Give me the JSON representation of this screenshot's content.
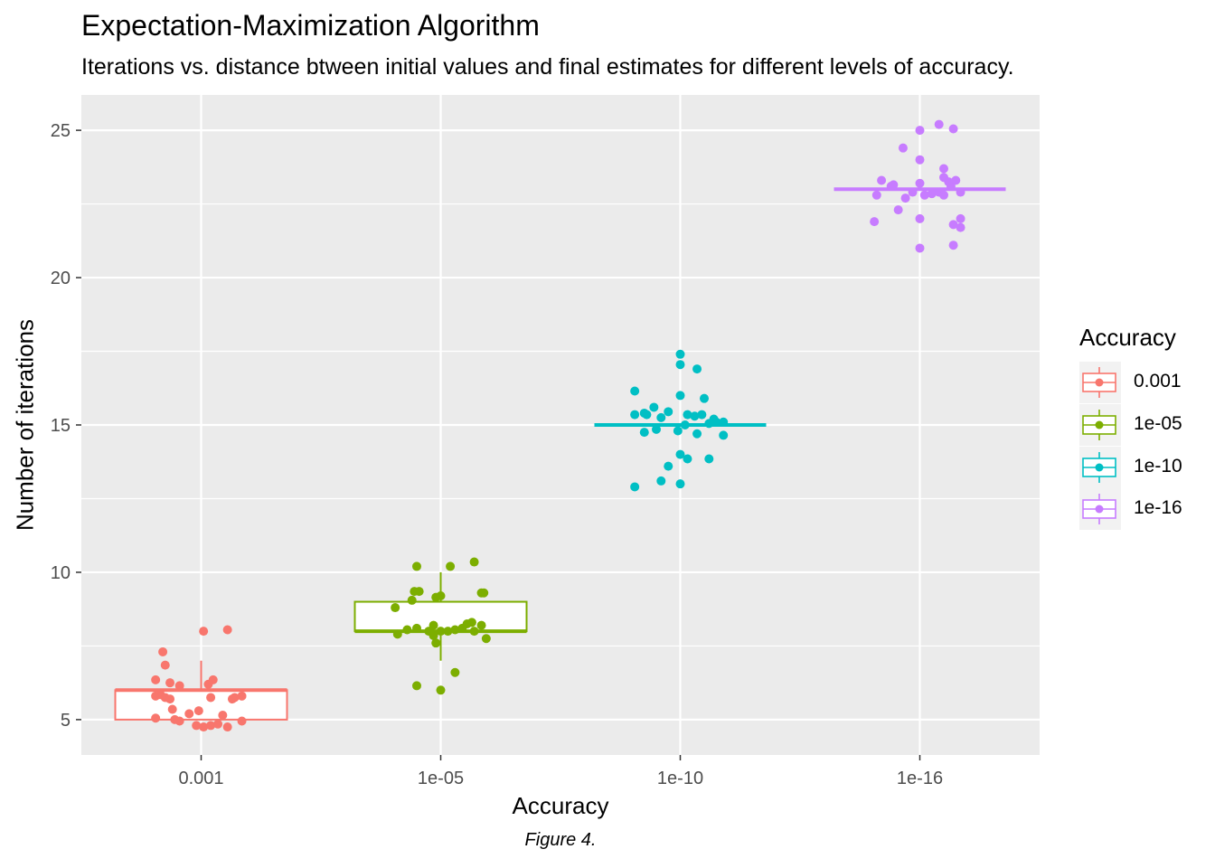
{
  "chart_data": {
    "type": "boxplot",
    "title": "Expectation-Maximization Algorithm",
    "subtitle": "Iterations vs. distance btween initial values and final estimates for different levels of accuracy.",
    "caption": "Figure 4.",
    "xlabel": "Accuracy",
    "ylabel": "Number of iterations",
    "ylim": [
      3.8,
      26.2
    ],
    "y_ticks": [
      5,
      10,
      15,
      20,
      25
    ],
    "categories": [
      "0.001",
      "1e-05",
      "1e-10",
      "1e-16"
    ],
    "legend": {
      "title": "Accuracy",
      "position": "right",
      "entries": [
        "0.001",
        "1e-05",
        "1e-10",
        "1e-16"
      ]
    },
    "colors": [
      "#F8766D",
      "#7CAE00",
      "#00BFC4",
      "#C77CFF"
    ],
    "grid": true,
    "series": [
      {
        "category": "0.001",
        "box": {
          "min": 5,
          "q1": 5,
          "median": 6,
          "q3": 6,
          "max": 7
        },
        "points": [
          [
            -0.19,
            6.35
          ],
          [
            -0.16,
            7.3
          ],
          [
            -0.15,
            6.85
          ],
          [
            -0.19,
            5.8
          ],
          [
            -0.17,
            5.85
          ],
          [
            -0.15,
            5.75
          ],
          [
            -0.13,
            5.7
          ],
          [
            -0.13,
            6.25
          ],
          [
            -0.09,
            6.15
          ],
          [
            -0.19,
            5.05
          ],
          [
            -0.11,
            5.0
          ],
          [
            -0.09,
            4.95
          ],
          [
            -0.12,
            5.35
          ],
          [
            -0.05,
            5.2
          ],
          [
            -0.01,
            5.3
          ],
          [
            -0.02,
            4.8
          ],
          [
            0.01,
            4.75
          ],
          [
            0.04,
            4.8
          ],
          [
            0.07,
            4.85
          ],
          [
            0.11,
            4.75
          ],
          [
            0.09,
            5.15
          ],
          [
            0.17,
            4.95
          ],
          [
            0.01,
            8.0
          ],
          [
            0.11,
            8.05
          ],
          [
            0.03,
            6.2
          ],
          [
            0.05,
            6.35
          ],
          [
            0.04,
            5.75
          ],
          [
            0.14,
            5.75
          ],
          [
            0.17,
            5.8
          ],
          [
            0.13,
            5.7
          ]
        ]
      },
      {
        "category": "1e-05",
        "box": {
          "min": 7,
          "q1": 8,
          "median": 8,
          "q3": 9,
          "max": 10
        },
        "points": [
          [
            -0.19,
            8.8
          ],
          [
            -0.12,
            9.05
          ],
          [
            -0.11,
            9.35
          ],
          [
            -0.09,
            9.35
          ],
          [
            -0.1,
            10.2
          ],
          [
            0.04,
            10.2
          ],
          [
            0.14,
            10.35
          ],
          [
            -0.18,
            7.9
          ],
          [
            -0.14,
            8.05
          ],
          [
            -0.1,
            8.1
          ],
          [
            -0.05,
            8.0
          ],
          [
            -0.03,
            8.2
          ],
          [
            0.0,
            8.0
          ],
          [
            0.03,
            8.0
          ],
          [
            -0.02,
            9.15
          ],
          [
            0.0,
            9.2
          ],
          [
            0.06,
            8.05
          ],
          [
            0.09,
            8.1
          ],
          [
            0.11,
            8.25
          ],
          [
            0.13,
            8.3
          ],
          [
            0.14,
            8.0
          ],
          [
            0.17,
            8.2
          ],
          [
            0.19,
            7.75
          ],
          [
            -0.03,
            7.85
          ],
          [
            -0.02,
            7.6
          ],
          [
            -0.1,
            6.15
          ],
          [
            0.06,
            6.6
          ],
          [
            0.0,
            6.0
          ],
          [
            0.17,
            9.3
          ],
          [
            0.18,
            9.3
          ]
        ]
      },
      {
        "category": "1e-10",
        "box": {
          "min": 15,
          "q1": 15,
          "median": 15,
          "q3": 15,
          "max": 15
        },
        "points": [
          [
            -0.19,
            16.15
          ],
          [
            -0.19,
            15.35
          ],
          [
            -0.15,
            15.4
          ],
          [
            -0.14,
            15.35
          ],
          [
            -0.11,
            15.6
          ],
          [
            -0.15,
            14.75
          ],
          [
            -0.1,
            14.85
          ],
          [
            -0.08,
            15.25
          ],
          [
            -0.05,
            15.45
          ],
          [
            -0.01,
            14.8
          ],
          [
            0.0,
            17.4
          ],
          [
            0.0,
            17.05
          ],
          [
            0.07,
            16.9
          ],
          [
            0.0,
            16.0
          ],
          [
            0.1,
            15.9
          ],
          [
            0.02,
            15.0
          ],
          [
            0.03,
            15.35
          ],
          [
            0.06,
            15.3
          ],
          [
            0.09,
            15.35
          ],
          [
            0.14,
            15.2
          ],
          [
            0.15,
            15.1
          ],
          [
            0.18,
            15.1
          ],
          [
            0.12,
            15.05
          ],
          [
            0.07,
            14.7
          ],
          [
            0.18,
            14.65
          ],
          [
            0.0,
            14.0
          ],
          [
            0.03,
            13.85
          ],
          [
            0.12,
            13.85
          ],
          [
            -0.05,
            13.6
          ],
          [
            -0.08,
            13.1
          ],
          [
            0.0,
            13.0
          ],
          [
            -0.19,
            12.9
          ]
        ]
      },
      {
        "category": "1e-16",
        "box": {
          "min": 23,
          "q1": 23,
          "median": 23,
          "q3": 23,
          "max": 23
        },
        "points": [
          [
            -0.18,
            22.8
          ],
          [
            -0.16,
            23.3
          ],
          [
            -0.12,
            23.1
          ],
          [
            -0.11,
            23.15
          ],
          [
            -0.09,
            22.3
          ],
          [
            -0.06,
            22.7
          ],
          [
            -0.07,
            24.4
          ],
          [
            0.0,
            24.0
          ],
          [
            0.0,
            25.0
          ],
          [
            0.08,
            25.2
          ],
          [
            0.14,
            25.05
          ],
          [
            -0.03,
            22.9
          ],
          [
            0.0,
            23.2
          ],
          [
            0.02,
            22.8
          ],
          [
            0.05,
            22.85
          ],
          [
            0.08,
            22.9
          ],
          [
            0.1,
            23.7
          ],
          [
            0.1,
            23.4
          ],
          [
            0.12,
            23.25
          ],
          [
            0.13,
            23.1
          ],
          [
            0.15,
            23.3
          ],
          [
            0.17,
            22.9
          ],
          [
            0.1,
            22.8
          ],
          [
            -0.19,
            21.9
          ],
          [
            0.0,
            22.0
          ],
          [
            0.14,
            21.8
          ],
          [
            0.17,
            21.7
          ],
          [
            0.17,
            22.0
          ],
          [
            0.14,
            21.1
          ],
          [
            0.0,
            21.0
          ]
        ]
      }
    ]
  }
}
